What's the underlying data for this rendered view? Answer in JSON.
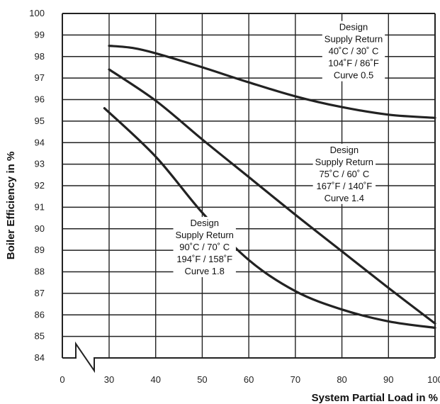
{
  "chart_data": {
    "type": "line",
    "xlabel": "System Partial Load in %",
    "ylabel": "Boiler Efficiency in %",
    "xlim": [
      0,
      100
    ],
    "ylim": [
      84,
      100
    ],
    "x_ticks": [
      "0",
      "30",
      "40",
      "50",
      "60",
      "70",
      "80",
      "90",
      "100"
    ],
    "y_ticks": [
      "84",
      "85",
      "86",
      "87",
      "88",
      "89",
      "90",
      "91",
      "92",
      "93",
      "94",
      "95",
      "96",
      "97",
      "98",
      "99",
      "100"
    ],
    "axis_break": true,
    "grid": true,
    "line_color": "#222222",
    "series": [
      {
        "x": [
          30,
          35,
          40,
          50,
          60,
          70,
          80,
          90,
          100
        ],
        "y": [
          98.5,
          98.4,
          98.15,
          97.5,
          96.8,
          96.15,
          95.65,
          95.3,
          95.15
        ]
      },
      {
        "x": [
          30,
          40,
          50,
          60,
          70,
          80,
          90,
          100
        ],
        "y": [
          97.4,
          95.95,
          94.15,
          92.4,
          90.65,
          88.95,
          87.25,
          85.6
        ]
      },
      {
        "x": [
          29,
          40,
          50,
          60,
          70,
          80,
          90,
          100
        ],
        "y": [
          95.6,
          93.35,
          90.75,
          88.55,
          87.1,
          86.25,
          85.7,
          85.4
        ]
      }
    ],
    "annotations": [
      {
        "lines": [
          "Design",
          "Supply Return",
          "40˚C / 30˚ C",
          "104˚F / 86˚F",
          "Curve 0.5"
        ],
        "x": 82.5,
        "y": 98.25
      },
      {
        "lines": [
          "Design",
          "Supply Return",
          "75˚C / 60˚ C",
          "167˚F / 140˚F",
          "Curve 1.4"
        ],
        "x": 80.5,
        "y": 92.55
      },
      {
        "lines": [
          "Design",
          "Supply Return",
          "90˚C / 70˚ C",
          "194˚F / 158˚F",
          "Curve 1.8"
        ],
        "x": 50.5,
        "y": 89.15
      }
    ]
  }
}
